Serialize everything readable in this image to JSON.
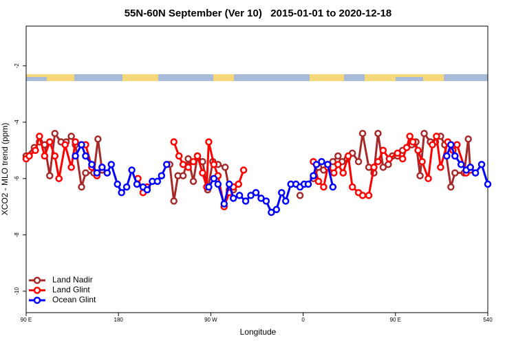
{
  "chart_data": {
    "type": "line",
    "title": "55N-60N September (Ver 10)   2015-01-01 to 2020-12-18",
    "x_label": "Longitude",
    "y_label": "XCO2 - MLO trend (ppm)",
    "xlim": [
      90,
      540
    ],
    "ylim": [
      -10.76,
      -0.59
    ],
    "xticks": [
      {
        "value": 90,
        "label": "90 E"
      },
      180,
      {
        "value": 270,
        "label": "90 W"
      },
      {
        "value": 360,
        "label": "0"
      },
      {
        "value": 450,
        "label": "90 E"
      },
      540
    ],
    "yticks": [
      -2,
      -4,
      -6,
      -8,
      -10
    ],
    "legend": "bottom-left",
    "series": [
      {
        "name": "Land Nadir",
        "color": "#a52a2a",
        "x": [
          90,
          98,
          103,
          108,
          113,
          118,
          124,
          129,
          134,
          138,
          144,
          148,
          156,
          160,
          164,
          197,
          230,
          234,
          238,
          243,
          248,
          253,
          257,
          262,
          267,
          272,
          277,
          284,
          288,
          292,
          297,
          330,
          357,
          365,
          370,
          375,
          380,
          384,
          389,
          394,
          398,
          403,
          408,
          414,
          418,
          424,
          429,
          433,
          438,
          443,
          447,
          452,
          457,
          461,
          466,
          470,
          474,
          478,
          484,
          489,
          494,
          498,
          504,
          508,
          517,
          521,
          523
        ],
        "values": [
          -5.2,
          -4.9,
          -4.7,
          -4.8,
          -5.9,
          -4.4,
          -4.7,
          -4.7,
          -4.5,
          -4.8,
          -6.3,
          -5.8,
          -5.8,
          -4.6,
          -5.7,
          null,
          -5.5,
          -6.8,
          -5.9,
          -5.9,
          -5.3,
          -6.1,
          -5.2,
          -5.4,
          -6.4,
          -5.4,
          -5.5,
          -5.6,
          -6.4,
          -6.4,
          -6.2,
          null,
          -6.6,
          null,
          -6.0,
          -5.6,
          -5.7,
          -5.5,
          -5.4,
          -5.2,
          -5.4,
          -5.3,
          -5.1,
          -5.4,
          -4.4,
          -5.6,
          -5.8,
          -4.4,
          -5.6,
          -5.5,
          -5.2,
          -5.2,
          -5.0,
          -4.9,
          -4.8,
          -4.7,
          -5.9,
          -4.4,
          -4.7,
          -4.7,
          -4.5,
          -4.8,
          -6.3,
          -5.8,
          -5.8,
          -4.6,
          -5.7
        ]
      },
      {
        "name": "Land Glint",
        "color": "#ff0000",
        "x": [
          90,
          93,
          99,
          103,
          108,
          113,
          118,
          122,
          128,
          134,
          138,
          144,
          148,
          154,
          159,
          164,
          182,
          199,
          204,
          208,
          222,
          234,
          239,
          243,
          248,
          253,
          257,
          262,
          266,
          268,
          273,
          277,
          283,
          288,
          292,
          297,
          302,
          330,
          370,
          375,
          380,
          384,
          390,
          394,
          399,
          404,
          408,
          414,
          418,
          424,
          429,
          433,
          438,
          444,
          452,
          457,
          461,
          464,
          467,
          472,
          476,
          482,
          486,
          490,
          494,
          501,
          506,
          510,
          519,
          523
        ],
        "values": [
          -5.3,
          -5.2,
          -5.0,
          -4.5,
          -5.2,
          -4.7,
          -5.2,
          -6.0,
          -4.8,
          -5.6,
          -4.7,
          -4.8,
          -4.8,
          -5.6,
          -5.9,
          -5.6,
          null,
          -6.0,
          -6.5,
          -6.3,
          null,
          -4.7,
          -5.2,
          -5.5,
          -5.6,
          -5.4,
          -5.2,
          -5.8,
          -6.3,
          -4.7,
          -5.5,
          -5.9,
          -7.0,
          -6.5,
          -6.3,
          -6.2,
          -5.7,
          null,
          -5.4,
          -6.1,
          -6.3,
          -5.6,
          -5.8,
          -5.5,
          -5.8,
          -5.2,
          -6.3,
          -6.5,
          -6.6,
          -6.6,
          -5.6,
          -5.4,
          -5.0,
          -5.3,
          -5.1,
          -5.3,
          -4.9,
          -4.5,
          -4.7,
          -5.0,
          -5.4,
          -6.0,
          -4.8,
          -4.5,
          -5.6,
          -4.7,
          -5.0,
          -4.8,
          -5.8,
          -5.6
        ]
      },
      {
        "name": "Ocean Glint",
        "color": "#0000ff",
        "x": [
          138,
          144,
          148,
          154,
          159,
          164,
          169,
          173,
          179,
          183,
          188,
          193,
          198,
          204,
          208,
          213,
          218,
          222,
          227,
          248,
          268,
          273,
          277,
          283,
          288,
          292,
          298,
          304,
          309,
          314,
          319,
          324,
          329,
          334,
          339,
          343,
          348,
          353,
          357,
          361,
          365,
          370,
          373,
          378,
          384,
          389,
          444,
          500,
          504,
          508,
          514,
          519,
          523,
          528,
          534,
          540
        ],
        "values": [
          -5.2,
          -4.8,
          -5.2,
          -5.5,
          -5.8,
          -5.6,
          -5.8,
          -5.5,
          -6.2,
          -6.5,
          -6.3,
          -5.7,
          -6.2,
          -6.3,
          -6.4,
          -6.1,
          -6.1,
          -5.9,
          -5.5,
          null,
          -6.3,
          -6.0,
          -6.2,
          -6.9,
          -6.2,
          -6.7,
          -6.6,
          -6.8,
          -6.6,
          -6.5,
          -6.7,
          -6.8,
          -7.2,
          -7.1,
          -6.5,
          -6.8,
          -6.2,
          -6.2,
          -6.3,
          -6.2,
          -6.2,
          -5.9,
          -5.5,
          -5.4,
          -5.5,
          -6.3,
          null,
          -5.2,
          -4.8,
          -5.2,
          -5.5,
          -5.7,
          -5.6,
          -5.8,
          -5.5,
          -6.2
        ]
      }
    ]
  }
}
